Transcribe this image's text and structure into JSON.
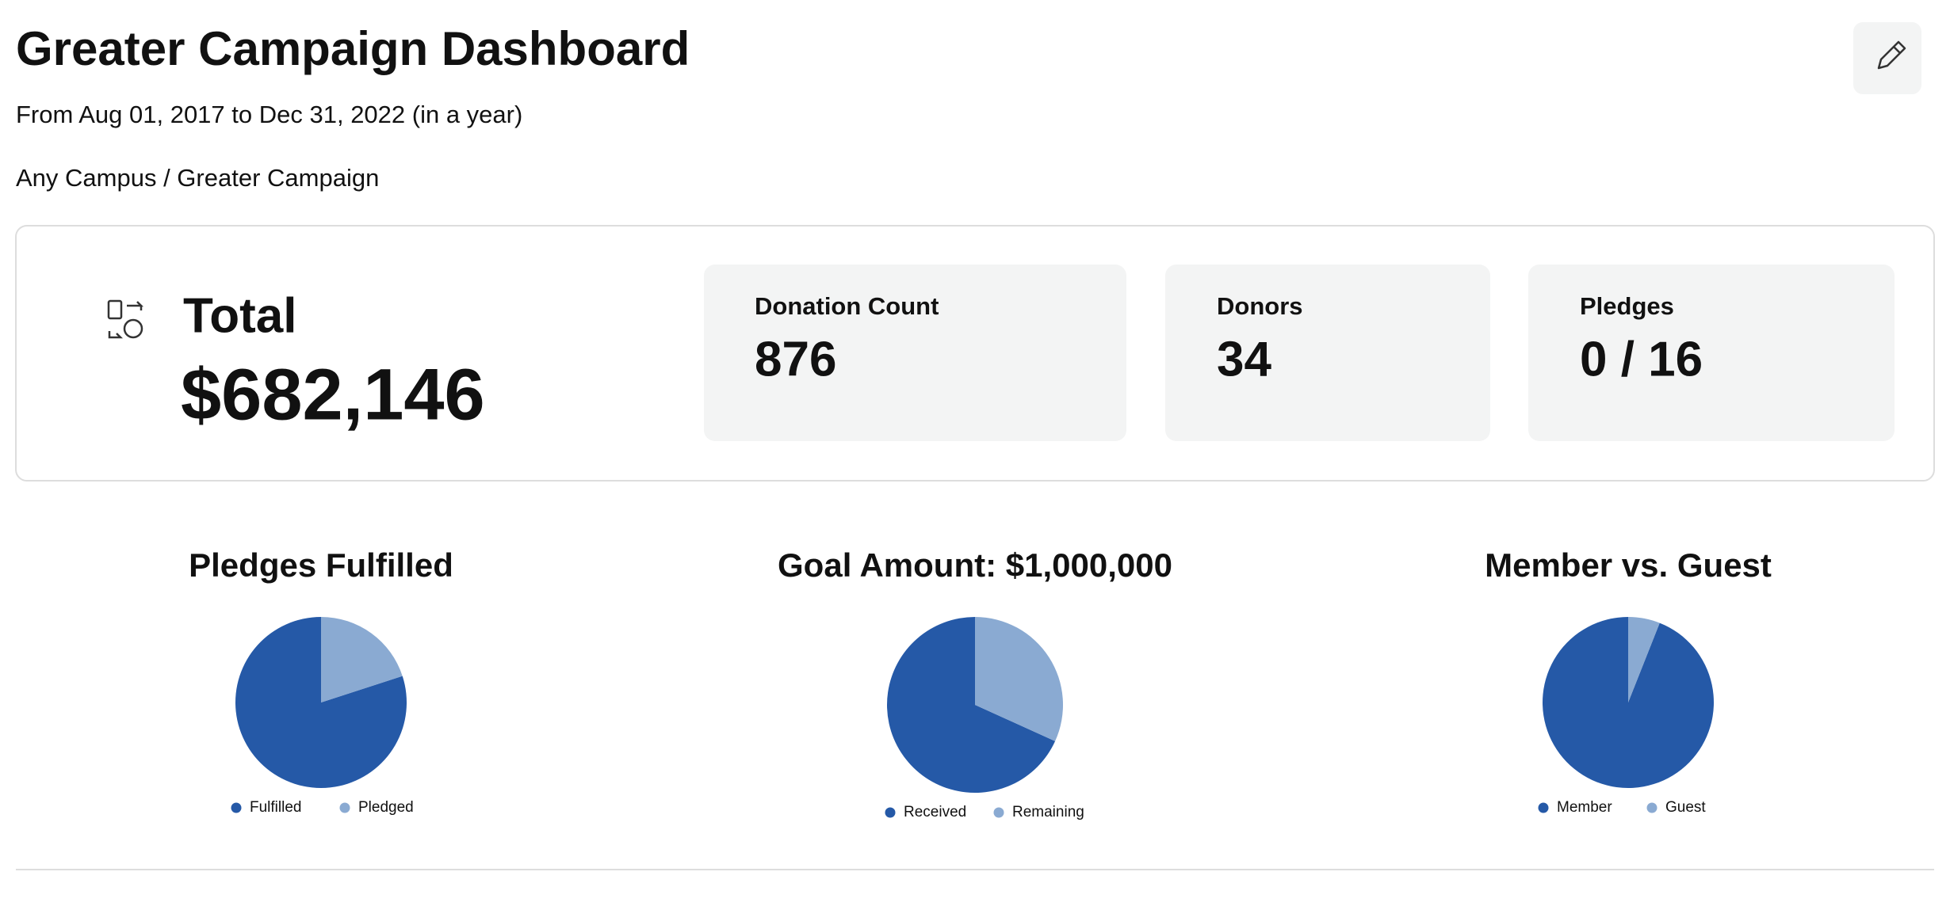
{
  "header": {
    "title": "Greater Campaign Dashboard",
    "subtitle": "From Aug 01, 2017 to Dec 31, 2022 (in a year)",
    "breadcrumb": "Any Campus / Greater Campaign"
  },
  "summary": {
    "label": "Total",
    "total": "$682,146"
  },
  "stats": [
    {
      "label": "Donation Count",
      "value": 876
    },
    {
      "label": "Donors",
      "value": 34
    },
    {
      "label": "Pledges",
      "value": "0 / 16"
    }
  ],
  "chart_data": [
    {
      "type": "pie",
      "title": "Pledges Fulfilled",
      "categories": [
        "Fulfilled",
        "Pledged"
      ],
      "values": [
        80,
        20
      ],
      "colors": [
        "#2559a7",
        "#8aaad2"
      ]
    },
    {
      "type": "pie",
      "title": "Goal Amount: $1,000,000",
      "categories": [
        "Received",
        "Remaining"
      ],
      "values": [
        682146,
        317854
      ],
      "colors": [
        "#2559a7",
        "#8aaad2"
      ]
    },
    {
      "type": "pie",
      "title": "Member vs. Guest",
      "categories": [
        "Member",
        "Guest"
      ],
      "values": [
        94,
        6
      ],
      "colors": [
        "#2559a7",
        "#8aaad2"
      ]
    }
  ]
}
